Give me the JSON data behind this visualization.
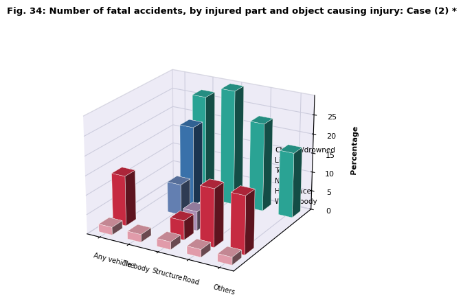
{
  "title": "Fig. 34: Number of fatal accidents, by injured part and object causing injury: Case (2) *",
  "ylabel": "Percentage",
  "categories": [
    "Any vehicle body",
    "Tire",
    "Structure",
    "Road",
    "Others"
  ],
  "series_labels": [
    "Whole body",
    "Head/face",
    "Neck",
    "Torso",
    "Limbs",
    "Choked/drowned"
  ],
  "series_colors": {
    "Whole body": "#FFB0C0",
    "Head/face": "#E0304A",
    "Neck": "#C0A0CC",
    "Torso": "#7090C8",
    "Limbs": "#4080C0",
    "Choked/drowned": "#30B8A8"
  },
  "data": {
    "Whole body": [
      2,
      2,
      2,
      2,
      2
    ],
    "Head/face": [
      13,
      0,
      5,
      15,
      15
    ],
    "Neck": [
      0,
      0,
      5,
      0,
      0
    ],
    "Torso": [
      0,
      8,
      0,
      0,
      0
    ],
    "Limbs": [
      0,
      21,
      0,
      0,
      0
    ],
    "Choked/drowned": [
      0,
      27,
      30,
      23,
      17
    ]
  },
  "ylim": [
    0,
    30
  ],
  "yticks": [
    0,
    5,
    10,
    15,
    20,
    25
  ],
  "pane_color": "#DDD8EE",
  "title_fontsize": 9.5,
  "label_fontsize": 8,
  "tick_fontsize": 8
}
